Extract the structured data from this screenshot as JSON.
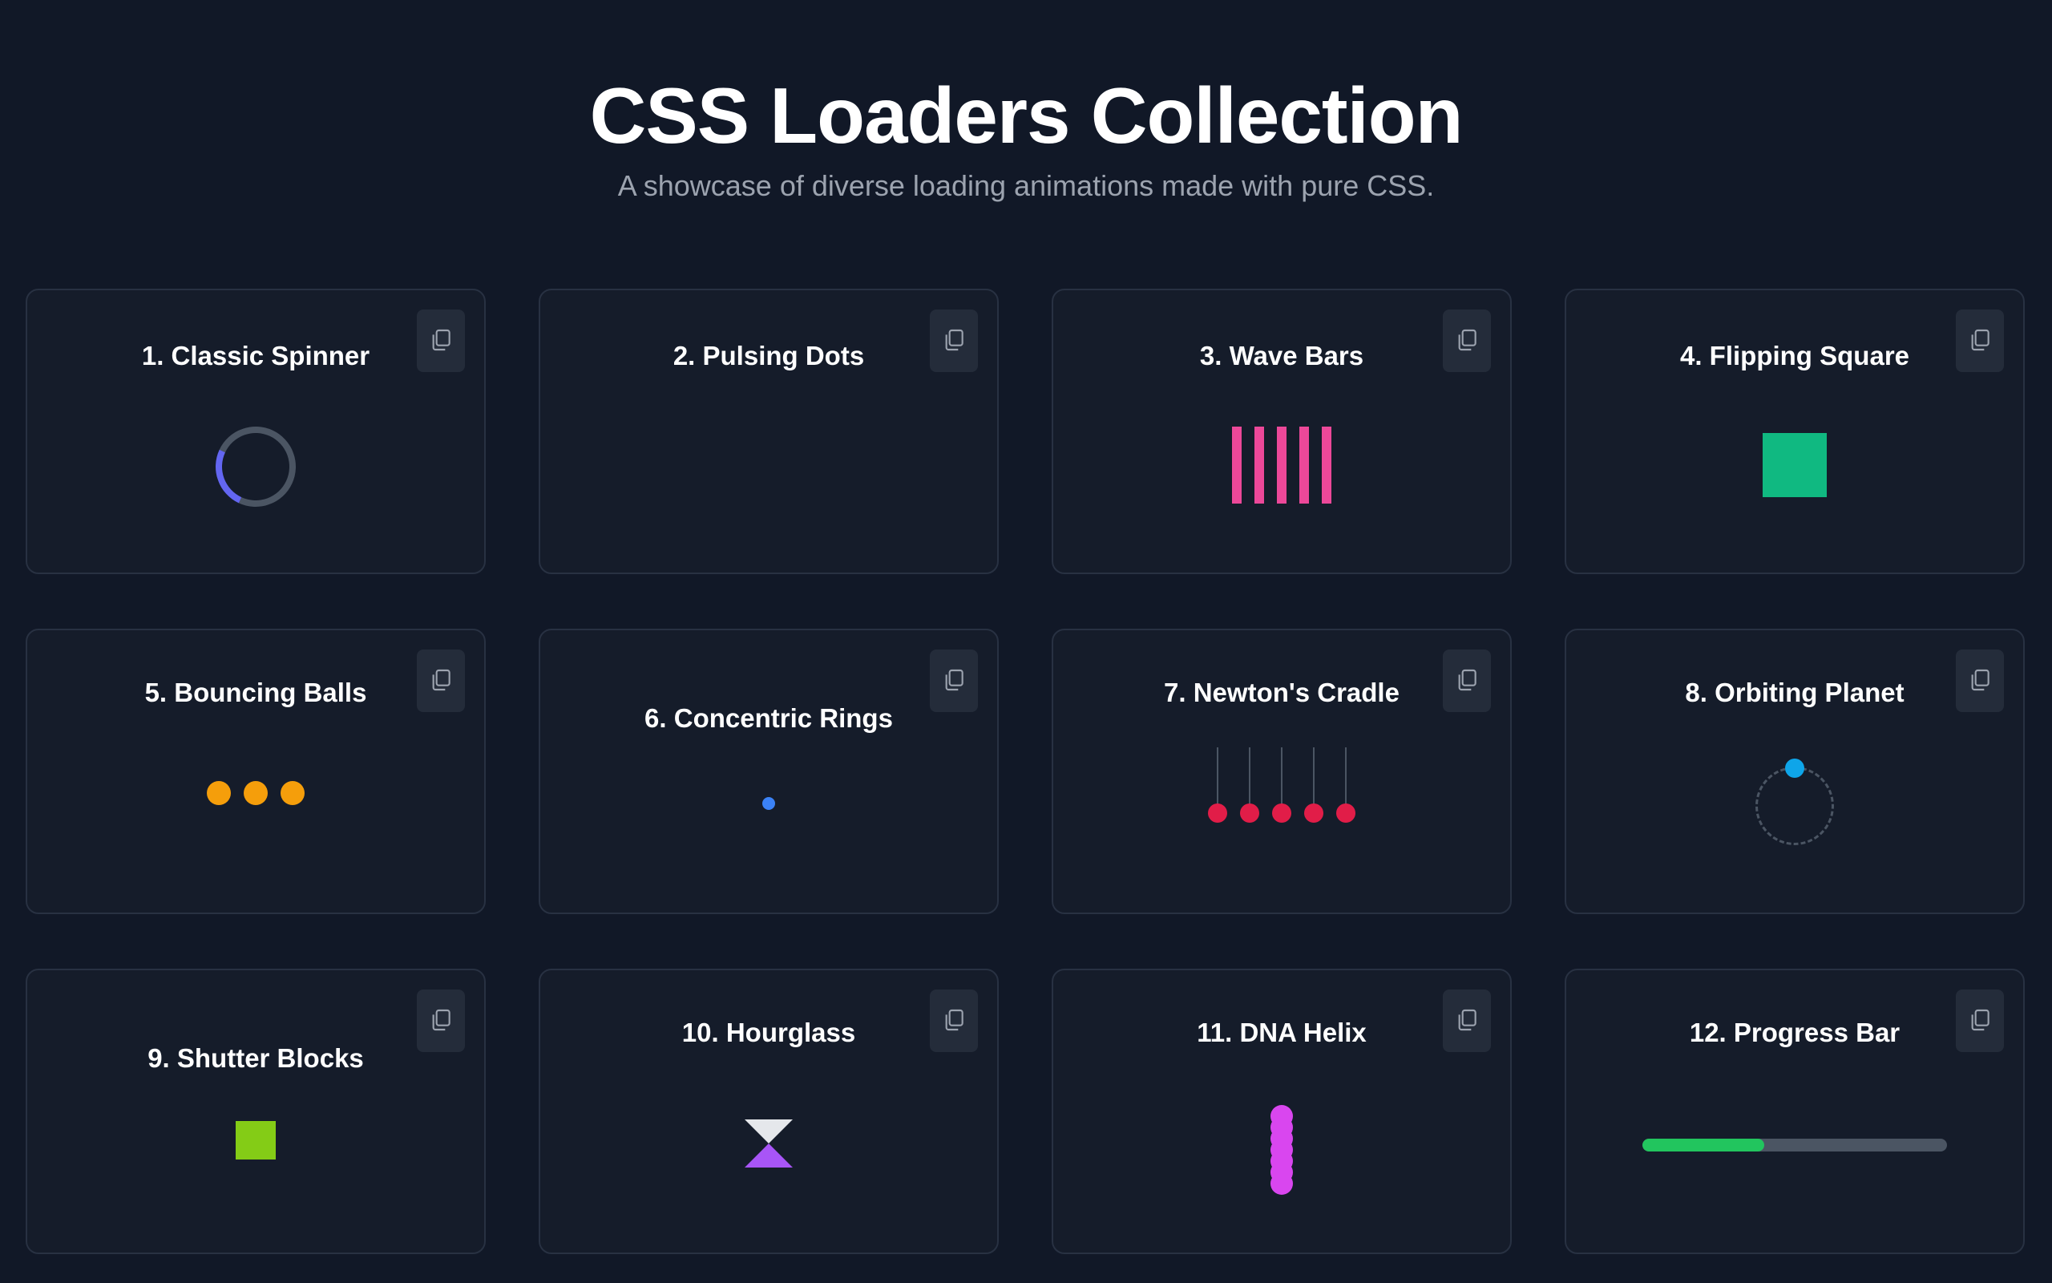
{
  "header": {
    "title": "CSS Loaders Collection",
    "subtitle": "A showcase of diverse loading animations made with pure CSS."
  },
  "copy_icon": "copy-icon",
  "cards": [
    {
      "title": "1. Classic Spinner",
      "accent": "#6366f1"
    },
    {
      "title": "2. Pulsing Dots",
      "accent": ""
    },
    {
      "title": "3. Wave Bars",
      "accent": "#ec4899"
    },
    {
      "title": "4. Flipping Square",
      "accent": "#10b981"
    },
    {
      "title": "5. Bouncing Balls",
      "accent": "#f59e0b"
    },
    {
      "title": "6. Concentric Rings",
      "accent": "#3b82f6"
    },
    {
      "title": "7. Newton's Cradle",
      "accent": "#e11d48"
    },
    {
      "title": "8. Orbiting Planet",
      "accent": "#0ea5e9"
    },
    {
      "title": "9. Shutter Blocks",
      "accent": "#84cc16"
    },
    {
      "title": "10. Hourglass",
      "accent": "#a855f7"
    },
    {
      "title": "11. DNA Helix",
      "accent": "#d946ef"
    },
    {
      "title": "12. Progress Bar",
      "accent": "#22c55e",
      "progress": 0.4
    }
  ]
}
